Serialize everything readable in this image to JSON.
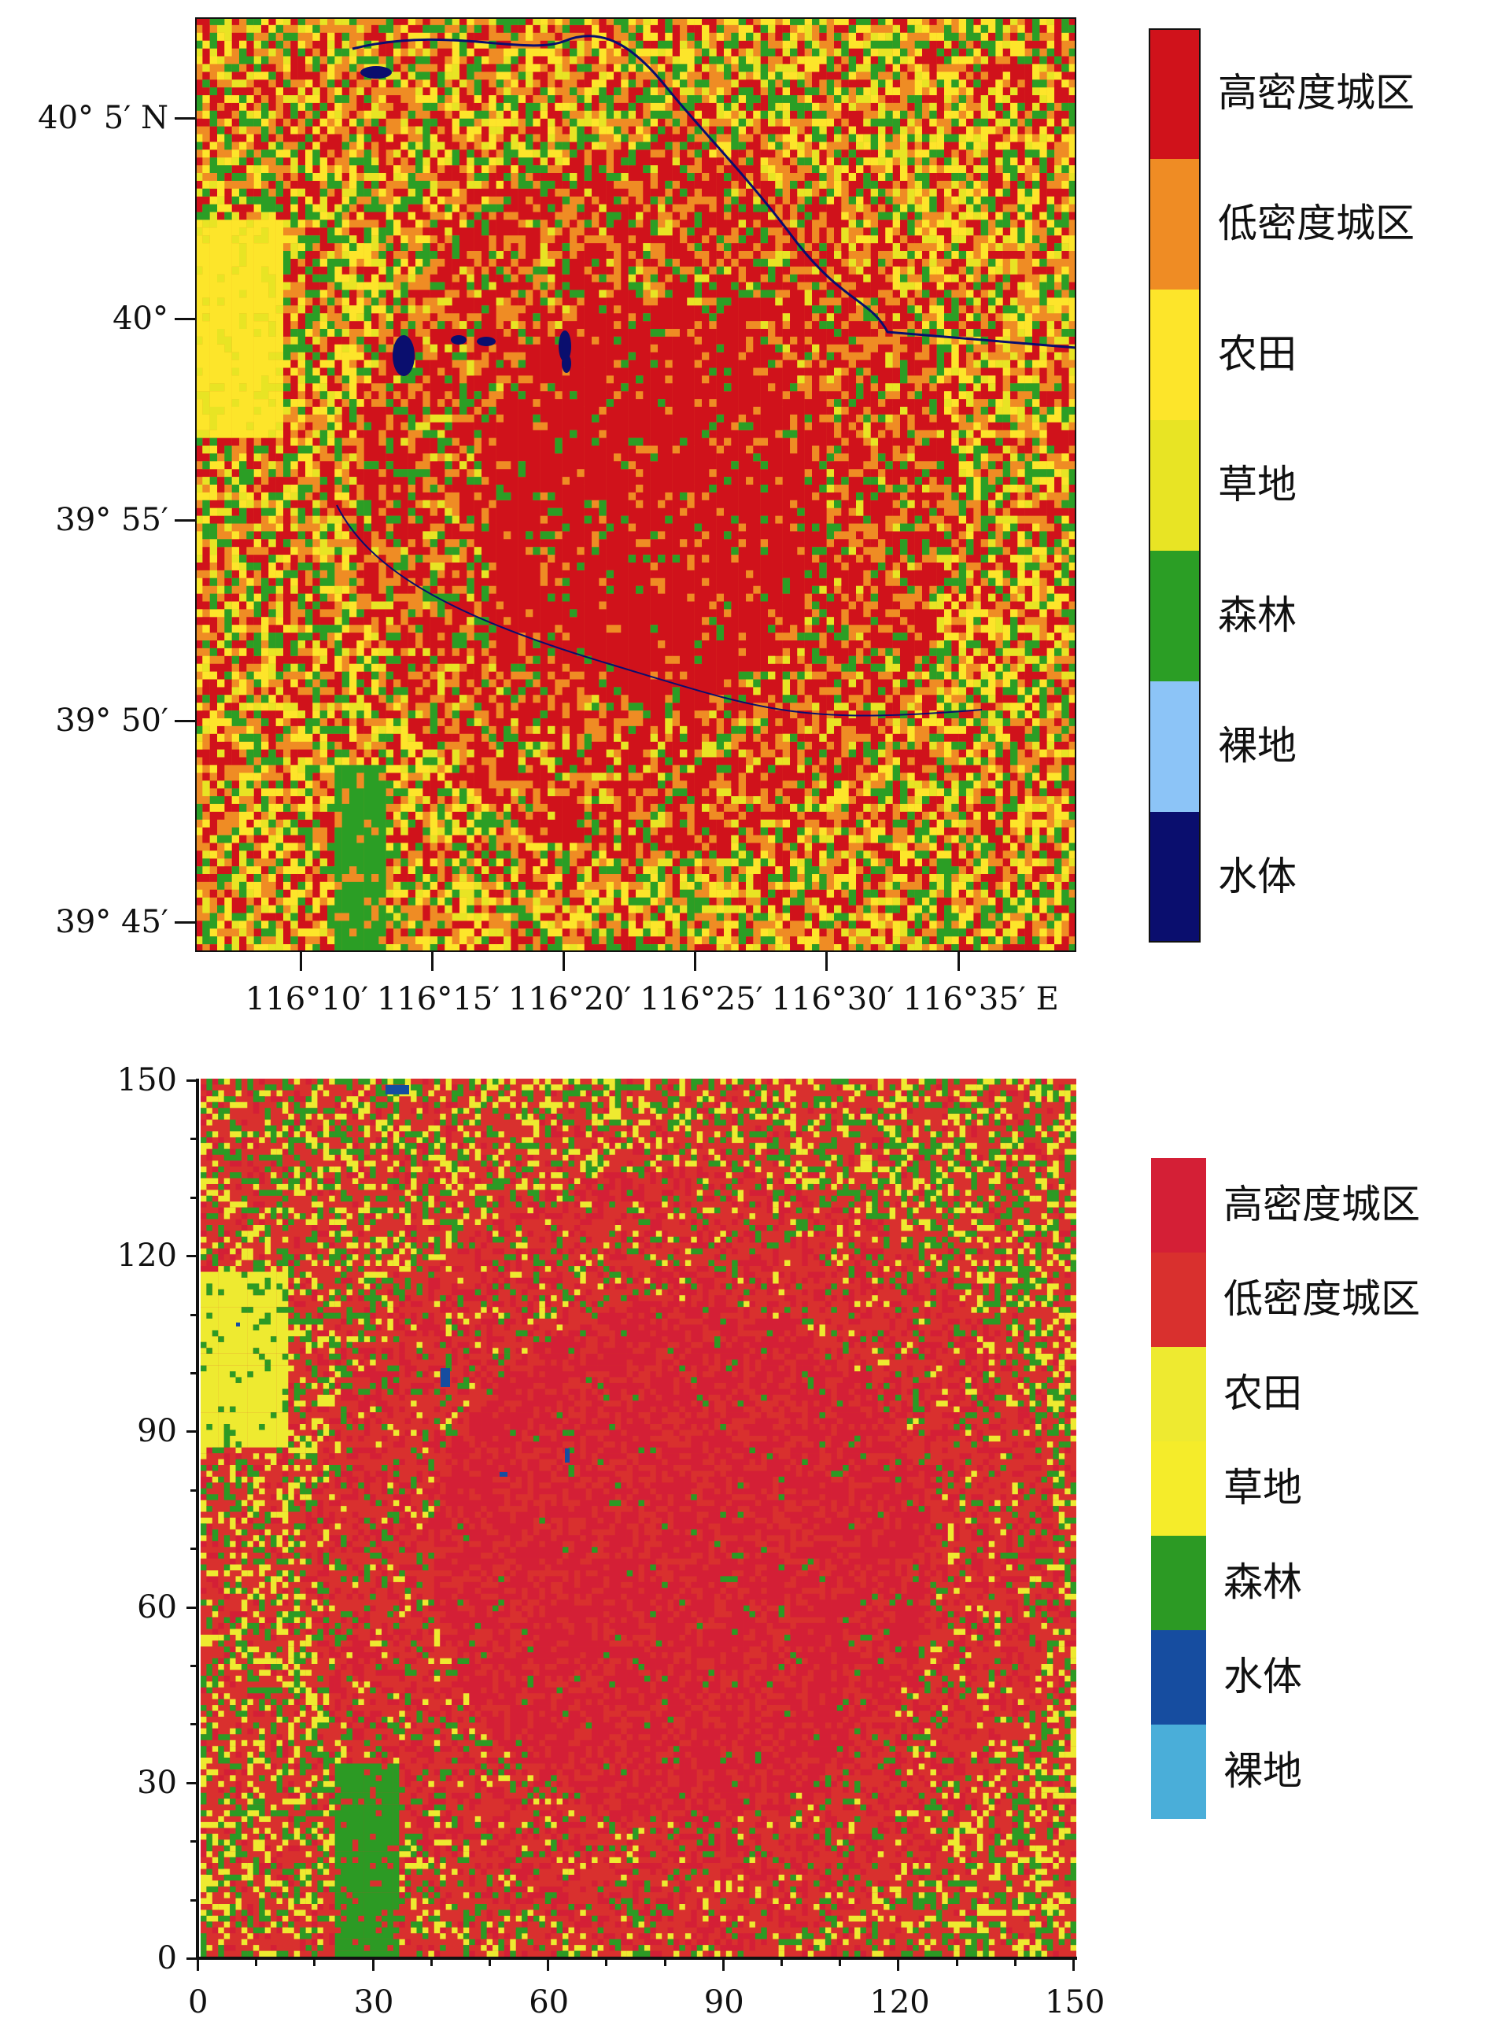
{
  "top_map": {
    "y_ticks": [
      {
        "label": "40° 5′ N",
        "lat": 40.0833
      },
      {
        "label": "40°",
        "lat": 40.0
      },
      {
        "label": "39° 55′",
        "lat": 39.9167
      },
      {
        "label": "39° 50′",
        "lat": 39.8333
      },
      {
        "label": "39° 45′",
        "lat": 39.75
      }
    ],
    "x_ticks": [
      {
        "label": "116°10′",
        "lon": 116.1667
      },
      {
        "label": "116°15′",
        "lon": 116.25
      },
      {
        "label": "116°20′",
        "lon": 116.3333
      },
      {
        "label": "116°25′",
        "lon": 116.4167
      },
      {
        "label": "116°30′",
        "lon": 116.5
      },
      {
        "label": "116°35′ E",
        "lon": 116.5833
      }
    ],
    "legend": [
      {
        "label": "高密度城区",
        "color": "#d0121b"
      },
      {
        "label": "低密度城区",
        "color": "#ef8c24"
      },
      {
        "label": "农田",
        "color": "#fde52a"
      },
      {
        "label": "草地",
        "color": "#e8e424"
      },
      {
        "label": "森林",
        "color": "#2b9e25"
      },
      {
        "label": "裸地",
        "color": "#8cc4f7"
      },
      {
        "label": "水体",
        "color": "#0a0e6e"
      }
    ]
  },
  "bottom_map": {
    "y_ticks": [
      "0",
      "30",
      "60",
      "90",
      "120",
      "150"
    ],
    "x_ticks": [
      "0",
      "30",
      "60",
      "90",
      "120",
      "150"
    ],
    "legend": [
      {
        "label": "高密度城区",
        "color": "#d41f36"
      },
      {
        "label": "低密度城区",
        "color": "#d9302e"
      },
      {
        "label": "农田",
        "color": "#eeea30"
      },
      {
        "label": "草地",
        "color": "#f5ec2a"
      },
      {
        "label": "森林",
        "color": "#2c9a24"
      },
      {
        "label": "水体",
        "color": "#164da0"
      },
      {
        "label": "裸地",
        "color": "#4aaed9"
      }
    ]
  }
}
